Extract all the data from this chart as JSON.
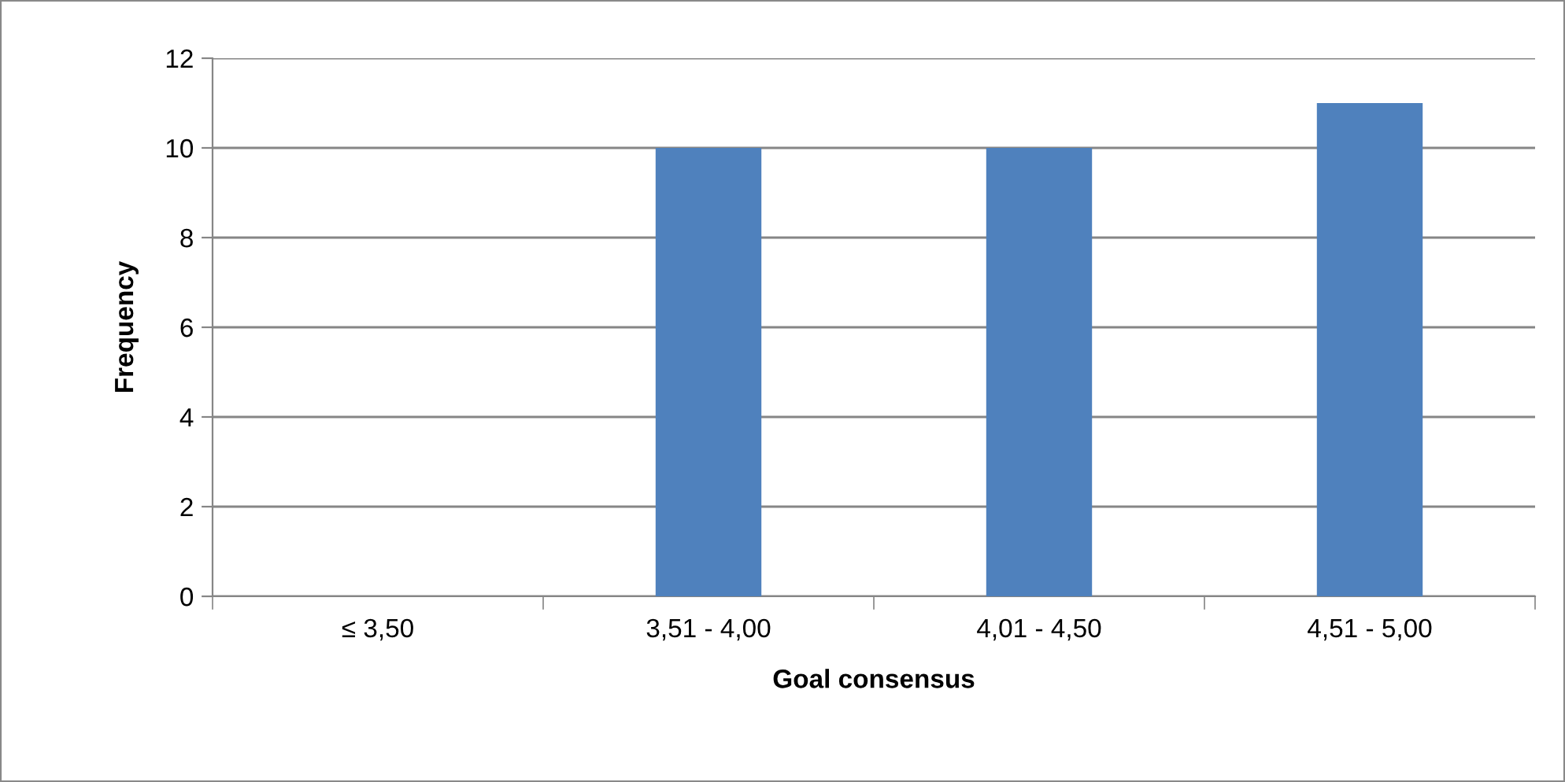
{
  "chart_data": {
    "type": "bar",
    "xlabel": "Goal consensus",
    "ylabel": "Frequency",
    "categories": [
      "≤ 3,50",
      "3,51 - 4,00",
      "4,01 - 4,50",
      "4,51 - 5,00"
    ],
    "values": [
      0,
      10,
      10,
      11
    ],
    "color": "#4f81bd",
    "ylim": [
      0,
      12
    ],
    "yticks": [
      0,
      2,
      4,
      6,
      8,
      10,
      12
    ],
    "grid": "y"
  }
}
